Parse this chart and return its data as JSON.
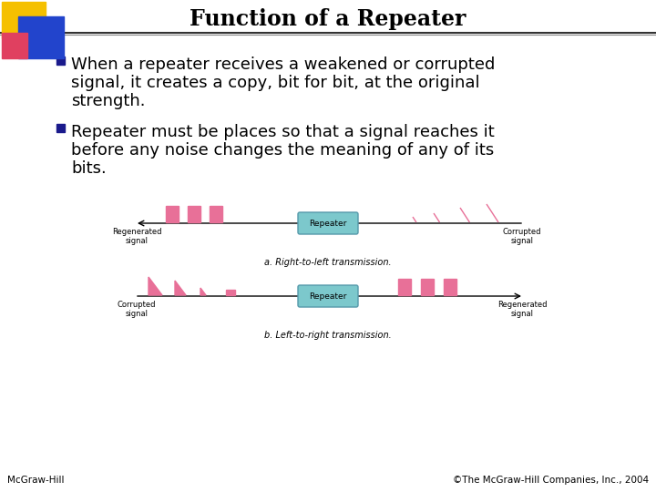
{
  "title": "Function of a Repeater",
  "bullet1_line1": "When a repeater receives a weakened or corrupted",
  "bullet1_line2": "signal, it creates a copy, bit for bit, at the original",
  "bullet1_line3": "strength.",
  "bullet2_line1": "Repeater must be places so that a signal reaches it",
  "bullet2_line2": "before any noise changes the meaning of any of its",
  "bullet2_line3": "bits.",
  "footer_left": "McGraw-Hill",
  "footer_right": "©The McGraw-Hill Companies, Inc., 2004",
  "bg_color": "#ffffff",
  "title_color": "#000000",
  "text_color": "#000000",
  "bullet_marker_color": "#1a1a8c",
  "pink_color": "#e87098",
  "repeater_color": "#7cc8cc",
  "repeater_border": "#5599aa",
  "caption1": "a. Right-to-left transmission.",
  "caption2": "b. Left-to-right transmission.",
  "label_regen_top": "Regenerated\nsignal",
  "label_corrupt_top": "Corrupted\nsignal",
  "label_corrupt_bot": "Corrupted\nsignal",
  "label_regen_bot": "Regenerated\nsignal",
  "logo_yellow": "#f5c000",
  "logo_blue": "#2244cc",
  "logo_pink": "#e04060",
  "line_color": "#888888"
}
